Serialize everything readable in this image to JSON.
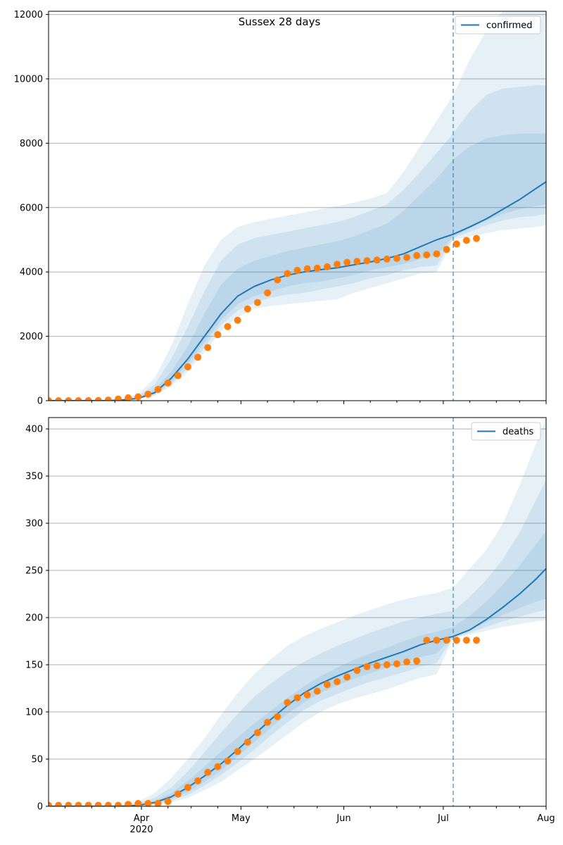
{
  "figure": {
    "title": "Sussex 28 days",
    "x_ticks": [
      {
        "day": 31,
        "label": "Apr",
        "sublabel": "2020"
      },
      {
        "day": 61,
        "label": "May",
        "sublabel": ""
      },
      {
        "day": 92,
        "label": "Jun",
        "sublabel": ""
      },
      {
        "day": 122,
        "label": "Jul",
        "sublabel": ""
      },
      {
        "day": 153,
        "label": "Aug",
        "sublabel": ""
      }
    ],
    "x_minor_days": [
      8,
      16,
      23,
      39,
      46,
      54,
      69,
      77,
      84,
      100,
      108,
      115,
      130,
      138,
      145
    ],
    "x_range_days": [
      3,
      153
    ],
    "forecast_start_day": 125,
    "colors": {
      "model": "#1f77b4",
      "observed": "#ff7f0e",
      "band": "#1f77b4",
      "grid": "#b0b0b0",
      "vline": "#1f77b4"
    }
  },
  "chart_data": [
    {
      "type": "line",
      "title": "Sussex 28 days",
      "series_name": "confirmed",
      "legend_position": "top-right",
      "grid": "y",
      "ylim": [
        0,
        12100
      ],
      "yticks": [
        0,
        2000,
        4000,
        6000,
        8000,
        10000,
        12000
      ],
      "model": {
        "name": "confirmed",
        "days": [
          3,
          20,
          25,
          30,
          35,
          40,
          45,
          50,
          55,
          60,
          65,
          70,
          75,
          80,
          85,
          90,
          95,
          100,
          105,
          110,
          115,
          120,
          125,
          130,
          135,
          140,
          145,
          150,
          153
        ],
        "median": [
          0,
          0,
          20,
          70,
          250,
          700,
          1300,
          2000,
          2700,
          3250,
          3550,
          3750,
          3900,
          4000,
          4070,
          4130,
          4220,
          4310,
          4420,
          4560,
          4780,
          5000,
          5170,
          5400,
          5650,
          5950,
          6250,
          6600,
          6800
        ],
        "bands": [
          {
            "low": [
              0,
              0,
              10,
              40,
              150,
              450,
              900,
              1500,
              2150,
              2600,
              2850,
              2950,
              3000,
              3050,
              3100,
              3150,
              3350,
              3500,
              3650,
              3800,
              3950,
              4000,
              5000,
              5100,
              5200,
              5300,
              5350,
              5400,
              5450
            ],
            "high": [
              0,
              10,
              50,
              200,
              700,
              1700,
              3000,
              4200,
              5000,
              5400,
              5550,
              5650,
              5750,
              5850,
              5950,
              6050,
              6150,
              6280,
              6450,
              7100,
              7900,
              8700,
              9500,
              10600,
              11500,
              12100,
              12100,
              12100,
              12100
            ]
          },
          {
            "low": [
              0,
              0,
              12,
              50,
              180,
              520,
              1000,
              1650,
              2350,
              2800,
              3050,
              3200,
              3300,
              3350,
              3450,
              3550,
              3650,
              3800,
              3900,
              4050,
              4150,
              4200,
              5050,
              5250,
              5450,
              5600,
              5700,
              5750,
              5800
            ],
            "high": [
              0,
              5,
              40,
              150,
              500,
              1300,
              2300,
              3400,
              4350,
              4850,
              5050,
              5150,
              5250,
              5350,
              5450,
              5550,
              5700,
              5900,
              6100,
              6550,
              7100,
              7700,
              8300,
              9000,
              9500,
              9700,
              9750,
              9800,
              9800
            ]
          },
          {
            "low": [
              0,
              0,
              15,
              60,
              210,
              600,
              1150,
              1800,
              2500,
              3000,
              3250,
              3400,
              3550,
              3650,
              3700,
              3800,
              3900,
              4050,
              4150,
              4250,
              4400,
              4500,
              5100,
              5350,
              5600,
              5800,
              5950,
              6050,
              6100
            ],
            "high": [
              0,
              3,
              30,
              100,
              350,
              900,
              1700,
              2700,
              3600,
              4100,
              4350,
              4500,
              4650,
              4750,
              4850,
              4950,
              5100,
              5300,
              5500,
              5900,
              6400,
              6900,
              7500,
              7900,
              8150,
              8250,
              8300,
              8300,
              8300
            ]
          }
        ]
      },
      "observed": {
        "days": [
          3,
          6,
          9,
          12,
          15,
          18,
          21,
          24,
          27,
          30,
          33,
          36,
          39,
          42,
          45,
          48,
          51,
          54,
          57,
          60,
          63,
          66,
          69,
          72,
          75,
          78,
          81,
          84,
          87,
          90,
          93,
          96,
          99,
          102,
          105,
          108,
          111,
          114,
          117,
          120,
          123,
          126,
          129,
          132
        ],
        "values": [
          0,
          0,
          0,
          0,
          0,
          5,
          20,
          50,
          90,
          120,
          200,
          350,
          550,
          780,
          1050,
          1350,
          1650,
          2050,
          2300,
          2500,
          2850,
          3050,
          3350,
          3750,
          3950,
          4050,
          4100,
          4120,
          4160,
          4240,
          4300,
          4330,
          4350,
          4370,
          4400,
          4420,
          4450,
          4510,
          4530,
          4560,
          4700,
          4870,
          4980,
          5040
        ]
      }
    },
    {
      "type": "line",
      "title": "",
      "series_name": "deaths",
      "legend_position": "top-right",
      "grid": "y",
      "ylim": [
        0,
        412
      ],
      "yticks": [
        0,
        50,
        100,
        150,
        200,
        250,
        300,
        350,
        400
      ],
      "model": {
        "name": "deaths",
        "days": [
          3,
          20,
          25,
          30,
          35,
          40,
          45,
          50,
          55,
          60,
          65,
          70,
          75,
          80,
          85,
          90,
          95,
          100,
          105,
          110,
          115,
          120,
          125,
          130,
          135,
          140,
          145,
          150,
          153
        ],
        "median": [
          0,
          0,
          0,
          1,
          4,
          10,
          20,
          32,
          45,
          60,
          76,
          92,
          107,
          120,
          130,
          138,
          145,
          152,
          158,
          164,
          171,
          176,
          180,
          187,
          198,
          211,
          225,
          241,
          252
        ],
        "bands": [
          {
            "low": [
              0,
              0,
              0,
              0,
              1,
              4,
              9,
              17,
              26,
              38,
              50,
              63,
              76,
              89,
              100,
              108,
              114,
              119,
              124,
              130,
              136,
              140,
              178,
              182,
              186,
              190,
              193,
              196,
              197
            ],
            "high": [
              0,
              0,
              2,
              5,
              14,
              30,
              50,
              72,
              97,
              120,
              140,
              156,
              170,
              180,
              188,
              195,
              202,
              208,
              214,
              219,
              223,
              226,
              232,
              252,
              272,
              300,
              340,
              385,
              412
            ]
          },
          {
            "low": [
              0,
              0,
              0,
              0,
              2,
              6,
              12,
              22,
              33,
              46,
              60,
              75,
              89,
              102,
              112,
              119,
              126,
              132,
              137,
              142,
              148,
              152,
              179,
              184,
              190,
              196,
              201,
              206,
              208
            ],
            "high": [
              0,
              0,
              1,
              3,
              9,
              20,
              37,
              57,
              78,
              98,
              116,
              130,
              143,
              153,
              162,
              170,
              177,
              184,
              190,
              196,
              200,
              204,
              207,
              222,
              240,
              262,
              290,
              325,
              346
            ]
          },
          {
            "low": [
              0,
              0,
              0,
              1,
              3,
              8,
              15,
              26,
              38,
              53,
              68,
              83,
              98,
              110,
              120,
              128,
              135,
              141,
              147,
              152,
              158,
              162,
              180,
              187,
              195,
              203,
              210,
              217,
              220
            ],
            "high": [
              0,
              0,
              1,
              2,
              6,
              14,
              27,
              42,
              58,
              73,
              88,
              101,
              115,
              127,
              138,
              147,
              155,
              162,
              168,
              175,
              181,
              185,
              190,
              202,
              217,
              235,
              255,
              278,
              292
            ]
          }
        ]
      },
      "observed": {
        "days": [
          3,
          6,
          9,
          12,
          15,
          18,
          21,
          24,
          27,
          30,
          33,
          36,
          39,
          42,
          45,
          48,
          51,
          54,
          57,
          60,
          63,
          66,
          69,
          72,
          75,
          78,
          81,
          84,
          87,
          90,
          93,
          96,
          99,
          102,
          105,
          108,
          111,
          114,
          117,
          120,
          123,
          126,
          129,
          132
        ],
        "values": [
          1,
          1,
          1,
          1,
          1,
          1,
          1,
          1,
          2,
          3,
          3,
          3,
          5,
          13,
          20,
          27,
          36,
          42,
          48,
          58,
          68,
          78,
          89,
          95,
          110,
          115,
          118,
          122,
          129,
          132,
          137,
          144,
          148,
          149,
          150,
          151,
          153,
          154,
          176,
          176,
          176,
          176,
          176,
          176
        ]
      }
    }
  ]
}
